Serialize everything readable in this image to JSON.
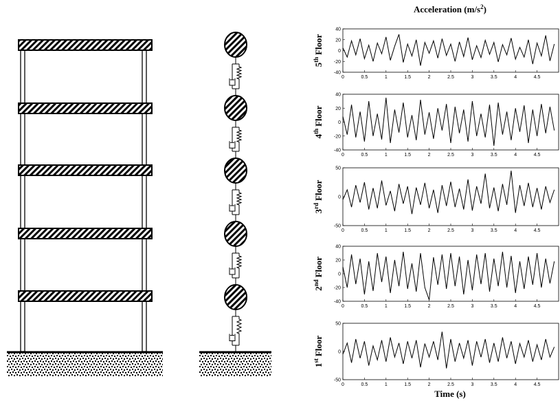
{
  "title": {
    "main": "Acceleration (m/s",
    "sup": "2",
    "end": ")"
  },
  "xlabel": "Time (s)",
  "chart_data": [
    {
      "type": "line",
      "ylabel": {
        "num": "5",
        "sup": "th",
        "rest": "Floor"
      },
      "color": "#000000",
      "xlim": [
        0,
        5
      ],
      "xticks": [
        0,
        0.5,
        1,
        1.5,
        2,
        2.5,
        3,
        3.5,
        4,
        4.5
      ],
      "ylim": [
        -40,
        40
      ],
      "yticks": [
        40,
        20,
        0,
        -20,
        -40
      ],
      "x": [
        0,
        0.1,
        0.2,
        0.3,
        0.4,
        0.5,
        0.6,
        0.7,
        0.8,
        0.9,
        1,
        1.1,
        1.2,
        1.3,
        1.4,
        1.5,
        1.6,
        1.7,
        1.8,
        1.9,
        2,
        2.1,
        2.2,
        2.3,
        2.4,
        2.5,
        2.6,
        2.7,
        2.8,
        2.9,
        3,
        3.1,
        3.2,
        3.3,
        3.4,
        3.5,
        3.6,
        3.7,
        3.8,
        3.9,
        4,
        4.1,
        4.2,
        4.3,
        4.4,
        4.5,
        4.6,
        4.7,
        4.8,
        4.9
      ],
      "values": [
        5,
        -12,
        18,
        -8,
        22,
        -15,
        10,
        -20,
        14,
        -6,
        25,
        -18,
        8,
        30,
        -22,
        12,
        -10,
        20,
        -28,
        15,
        -5,
        18,
        -14,
        22,
        -9,
        12,
        -20,
        16,
        -11,
        24,
        -17,
        9,
        -13,
        19,
        -7,
        15,
        -21,
        11,
        -8,
        23,
        -16,
        6,
        -12,
        20,
        -25,
        14,
        -10,
        28,
        -19,
        12
      ]
    },
    {
      "type": "line",
      "ylabel": {
        "num": "4",
        "sup": "th",
        "rest": "Floor"
      },
      "color": "#000000",
      "xlim": [
        0,
        5
      ],
      "xticks": [
        0,
        0.5,
        1,
        1.5,
        2,
        2.5,
        3,
        3.5,
        4,
        4.5
      ],
      "ylim": [
        -40,
        40
      ],
      "yticks": [
        40,
        20,
        0,
        -20,
        -40
      ],
      "x": [
        0,
        0.1,
        0.2,
        0.3,
        0.4,
        0.5,
        0.6,
        0.7,
        0.8,
        0.9,
        1,
        1.1,
        1.2,
        1.3,
        1.4,
        1.5,
        1.6,
        1.7,
        1.8,
        1.9,
        2,
        2.1,
        2.2,
        2.3,
        2.4,
        2.5,
        2.6,
        2.7,
        2.8,
        2.9,
        3,
        3.1,
        3.2,
        3.3,
        3.4,
        3.5,
        3.6,
        3.7,
        3.8,
        3.9,
        4,
        4.1,
        4.2,
        4.3,
        4.4,
        4.5,
        4.6,
        4.7,
        4.8,
        4.9
      ],
      "values": [
        8,
        -18,
        25,
        -22,
        15,
        -28,
        30,
        -20,
        12,
        -25,
        35,
        -30,
        18,
        -15,
        28,
        -22,
        10,
        -26,
        32,
        -18,
        14,
        -24,
        20,
        -12,
        26,
        -30,
        22,
        -16,
        18,
        -28,
        30,
        -20,
        12,
        -22,
        25,
        -34,
        28,
        -18,
        15,
        -26,
        20,
        -14,
        24,
        -30,
        18,
        -20,
        26,
        -16,
        22,
        -12
      ]
    },
    {
      "type": "line",
      "ylabel": {
        "num": "3",
        "sup": "rd",
        "rest": "Floor"
      },
      "color": "#000000",
      "xlim": [
        0,
        5
      ],
      "xticks": [
        0,
        0.5,
        1,
        1.5,
        2,
        2.5,
        3,
        3.5,
        4,
        4.5
      ],
      "ylim": [
        -50,
        50
      ],
      "yticks": [
        50,
        0,
        -50
      ],
      "x": [
        0,
        0.1,
        0.2,
        0.3,
        0.4,
        0.5,
        0.6,
        0.7,
        0.8,
        0.9,
        1,
        1.1,
        1.2,
        1.3,
        1.4,
        1.5,
        1.6,
        1.7,
        1.8,
        1.9,
        2,
        2.1,
        2.2,
        2.3,
        2.4,
        2.5,
        2.6,
        2.7,
        2.8,
        2.9,
        3,
        3.1,
        3.2,
        3.3,
        3.4,
        3.5,
        3.6,
        3.7,
        3.8,
        3.9,
        4,
        4.1,
        4.2,
        4.3,
        4.4,
        4.5,
        4.6,
        4.7,
        4.8,
        4.9
      ],
      "values": [
        -5,
        12,
        -18,
        20,
        -10,
        25,
        -22,
        15,
        -20,
        28,
        -15,
        10,
        -25,
        22,
        -12,
        18,
        -30,
        16,
        -14,
        24,
        -20,
        12,
        -28,
        20,
        -16,
        26,
        -18,
        14,
        -22,
        30,
        -24,
        18,
        -12,
        40,
        -20,
        16,
        -25,
        22,
        -14,
        45,
        -28,
        20,
        -16,
        24,
        -18,
        15,
        -22,
        18,
        -10,
        12
      ]
    },
    {
      "type": "line",
      "ylabel": {
        "num": "2",
        "sup": "nd",
        "rest": "Floor"
      },
      "color": "#000000",
      "xlim": [
        0,
        5
      ],
      "xticks": [
        0,
        0.5,
        1,
        1.5,
        2,
        2.5,
        3,
        3.5,
        4,
        4.5
      ],
      "ylim": [
        -40,
        40
      ],
      "yticks": [
        40,
        20,
        0,
        -20,
        -40
      ],
      "x": [
        0,
        0.1,
        0.2,
        0.3,
        0.4,
        0.5,
        0.6,
        0.7,
        0.8,
        0.9,
        1,
        1.1,
        1.2,
        1.3,
        1.4,
        1.5,
        1.6,
        1.7,
        1.8,
        1.9,
        2,
        2.1,
        2.2,
        2.3,
        2.4,
        2.5,
        2.6,
        2.7,
        2.8,
        2.9,
        3,
        3.1,
        3.2,
        3.3,
        3.4,
        3.5,
        3.6,
        3.7,
        3.8,
        3.9,
        4,
        4.1,
        4.2,
        4.3,
        4.4,
        4.5,
        4.6,
        4.7,
        4.8,
        4.9
      ],
      "values": [
        10,
        -20,
        28,
        -15,
        22,
        -30,
        18,
        -25,
        30,
        -12,
        25,
        -28,
        20,
        -18,
        32,
        -22,
        15,
        -26,
        30,
        -20,
        -38,
        24,
        -16,
        28,
        -22,
        30,
        -18,
        25,
        -30,
        20,
        -24,
        28,
        -15,
        30,
        -26,
        22,
        -18,
        32,
        -20,
        26,
        -28,
        18,
        -22,
        25,
        -16,
        30,
        -20,
        22,
        -14,
        18
      ]
    },
    {
      "type": "line",
      "ylabel": {
        "num": "1",
        "sup": "st",
        "rest": "Floor"
      },
      "color": "#000000",
      "xlim": [
        0,
        5
      ],
      "xticks": [
        0,
        0.5,
        1,
        1.5,
        2,
        2.5,
        3,
        3.5,
        4,
        4.5
      ],
      "ylim": [
        -50,
        50
      ],
      "yticks": [
        50,
        0,
        -50
      ],
      "x": [
        0,
        0.1,
        0.2,
        0.3,
        0.4,
        0.5,
        0.6,
        0.7,
        0.8,
        0.9,
        1,
        1.1,
        1.2,
        1.3,
        1.4,
        1.5,
        1.6,
        1.7,
        1.8,
        1.9,
        2,
        2.1,
        2.2,
        2.3,
        2.4,
        2.5,
        2.6,
        2.7,
        2.8,
        2.9,
        3,
        3.1,
        3.2,
        3.3,
        3.4,
        3.5,
        3.6,
        3.7,
        3.8,
        3.9,
        4,
        4.1,
        4.2,
        4.3,
        4.4,
        4.5,
        4.6,
        4.7,
        4.8,
        4.9
      ],
      "values": [
        -5,
        15,
        -20,
        22,
        -12,
        18,
        -25,
        10,
        -15,
        20,
        -18,
        25,
        -10,
        15,
        -22,
        18,
        -12,
        20,
        -28,
        14,
        -10,
        18,
        -15,
        35,
        -30,
        22,
        -18,
        15,
        -12,
        20,
        -25,
        18,
        -10,
        22,
        -20,
        15,
        -18,
        25,
        -12,
        18,
        -22,
        14,
        -10,
        20,
        -18,
        12,
        -15,
        22,
        -10,
        8
      ]
    }
  ]
}
